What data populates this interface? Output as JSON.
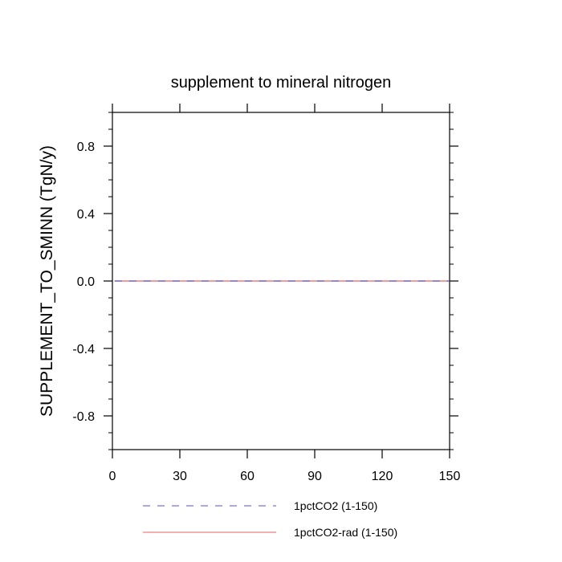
{
  "chart_data": {
    "type": "line",
    "title": "supplement to mineral nitrogen",
    "xlabel": "",
    "ylabel": "SUPPLEMENT_TO_SMINN  (TgN/y)",
    "xlim": [
      0,
      150
    ],
    "ylim": [
      -1.0,
      1.0
    ],
    "x_ticks": [
      0,
      30,
      60,
      90,
      120,
      150
    ],
    "x_tick_labels": [
      "0",
      "30",
      "60",
      "90",
      "120",
      "150"
    ],
    "y_ticks": [
      -0.8,
      -0.4,
      0.0,
      0.4,
      0.8
    ],
    "y_tick_labels": [
      "-0.8",
      "-0.4",
      "0.0",
      "0.4",
      "0.8"
    ],
    "grid": false,
    "legend_position": "bottom",
    "series": [
      {
        "name": "1pctCO2 (1-150)",
        "x": [
          1,
          150
        ],
        "y": [
          0.0,
          0.0
        ],
        "color": "#5b4fd6",
        "style": "dashed"
      },
      {
        "name": "1pctCO2-rad (1-150)",
        "x": [
          1,
          150
        ],
        "y": [
          0.0,
          0.0
        ],
        "color": "#e86060",
        "style": "solid"
      }
    ]
  }
}
